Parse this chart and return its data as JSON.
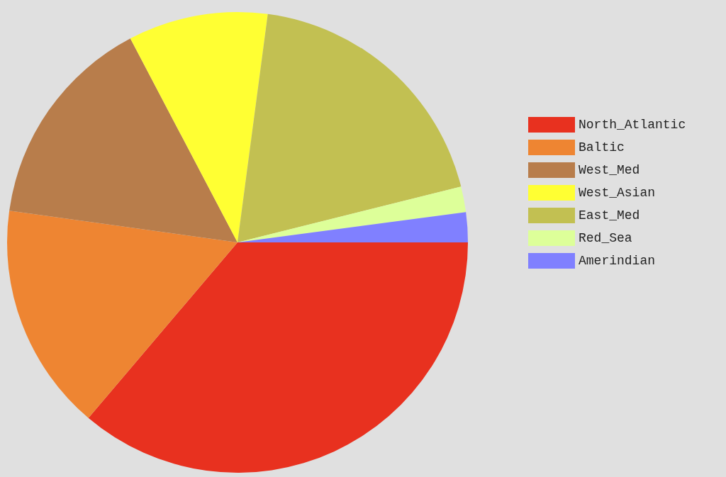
{
  "chart_data": {
    "type": "pie",
    "categories": [
      "North_Atlantic",
      "Baltic",
      "West_Med",
      "West_Asian",
      "East_Med",
      "Red_Sea",
      "Amerindian"
    ],
    "values": [
      36.2,
      16.0,
      15.1,
      9.8,
      19.0,
      1.8,
      2.1
    ],
    "colors": [
      "#e8311f",
      "#ee8532",
      "#b87d4b",
      "#ffff33",
      "#c2c052",
      "#ddff99",
      "#8080ff"
    ],
    "legend": "top right"
  }
}
